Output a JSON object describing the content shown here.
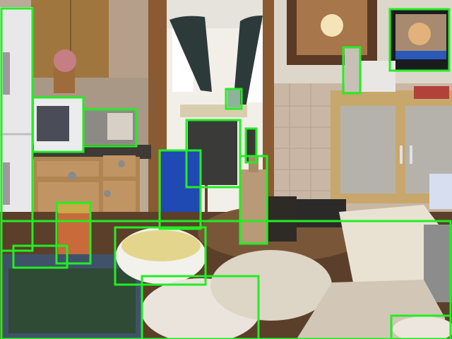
{
  "scene": {
    "description_hidden": "",
    "palette": {
      "box": "#22ee22",
      "cabinet": "#a0763f",
      "wall_tile": "#c9b6a4",
      "counter": "#3e3a36",
      "table": "#6a4a33",
      "appliance": "#e8e8ea"
    }
  },
  "detections": [
    {
      "name": "oven"
    },
    {
      "name": "microwave"
    },
    {
      "name": "toaster-oven"
    },
    {
      "name": "tv"
    },
    {
      "name": "bottle-on-cabinet"
    },
    {
      "name": "vase-far-room"
    },
    {
      "name": "chair-dark"
    },
    {
      "name": "chair-blue"
    },
    {
      "name": "bottle-small-table"
    },
    {
      "name": "wine-bottle"
    },
    {
      "name": "jar-sauce"
    },
    {
      "name": "dining-table"
    },
    {
      "name": "bowl-pasta"
    },
    {
      "name": "bowl-covered"
    },
    {
      "name": "container-left"
    },
    {
      "name": "bowl-bottom-right"
    }
  ]
}
